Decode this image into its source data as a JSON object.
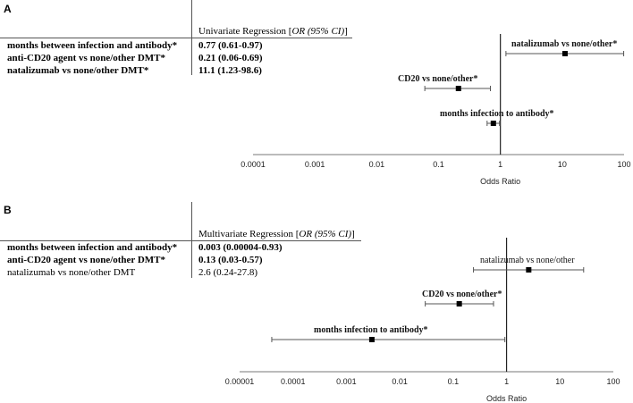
{
  "chart_data": [
    {
      "panel_label": "A",
      "type": "forest",
      "table": {
        "header_prefix": "Univariate Regression [",
        "header_italic": "OR (95% CI)",
        "header_suffix": "]",
        "rows": [
          {
            "label": "months between infection and antibody*",
            "value": "0.77 (0.61-0.97)",
            "bold": true
          },
          {
            "label": "anti-CD20 agent vs none/other DMT*",
            "value": "0.21 (0.06-0.69)",
            "bold": true
          },
          {
            "label": "natalizumab  vs none/other DMT*",
            "value": "11.1 (1.23-98.6)",
            "bold": true
          }
        ]
      },
      "xlabel": "Odds Ratio",
      "xscale": "log",
      "xlim": [
        0.0001,
        100
      ],
      "ticks": [
        {
          "v": 0.0001,
          "t": "0.0001"
        },
        {
          "v": 0.001,
          "t": "0.001"
        },
        {
          "v": 0.01,
          "t": "0.01"
        },
        {
          "v": 0.1,
          "t": "0.1"
        },
        {
          "v": 1,
          "t": "1"
        },
        {
          "v": 10,
          "t": "10"
        },
        {
          "v": 100,
          "t": "100"
        }
      ],
      "points": [
        {
          "label": "natalizumab  vs none/other*",
          "or": 11.1,
          "lo": 1.23,
          "hi": 98.6,
          "bold": true
        },
        {
          "label": "CD20 vs none/other*",
          "or": 0.21,
          "lo": 0.06,
          "hi": 0.69,
          "bold": true
        },
        {
          "label": "months infection to antibody*",
          "or": 0.77,
          "lo": 0.61,
          "hi": 0.97,
          "bold": true
        }
      ]
    },
    {
      "panel_label": "B",
      "type": "forest",
      "table": {
        "header_prefix": "Multivariate Regression [",
        "header_italic": "OR (95% CI)",
        "header_suffix": "]",
        "rows": [
          {
            "label": "months between infection and antibody*",
            "value": "0.003 (0.00004-0.93)",
            "bold": true
          },
          {
            "label": "anti-CD20 agent vs none/other DMT*",
            "value": "0.13 (0.03-0.57)",
            "bold": true
          },
          {
            "label": "natalizumab  vs none/other DMT",
            "value": "2.6 (0.24-27.8)",
            "bold": false
          }
        ]
      },
      "xlabel": "Odds Ratio",
      "xscale": "log",
      "xlim": [
        1e-05,
        100
      ],
      "ticks": [
        {
          "v": 1e-05,
          "t": "0.00001"
        },
        {
          "v": 0.0001,
          "t": "0.0001"
        },
        {
          "v": 0.001,
          "t": "0.001"
        },
        {
          "v": 0.01,
          "t": "0.01"
        },
        {
          "v": 0.1,
          "t": "0.1"
        },
        {
          "v": 1,
          "t": "1"
        },
        {
          "v": 10,
          "t": "10"
        },
        {
          "v": 100,
          "t": "100"
        }
      ],
      "points": [
        {
          "label": "natalizumab  vs none/other",
          "or": 2.6,
          "lo": 0.24,
          "hi": 27.8,
          "bold": false
        },
        {
          "label": "CD20 vs none/other*",
          "or": 0.13,
          "lo": 0.03,
          "hi": 0.57,
          "bold": true
        },
        {
          "label": "months infection to antibody*",
          "or": 0.003,
          "lo": 4e-05,
          "hi": 0.93,
          "bold": true
        }
      ]
    }
  ]
}
